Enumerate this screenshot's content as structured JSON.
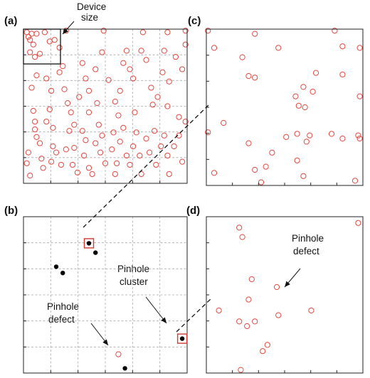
{
  "chart_data": [
    {
      "panel": "(a)",
      "type": "scatter",
      "marker": "open-circle",
      "color": "#e0483f",
      "grid": true,
      "xlim": [
        0,
        100
      ],
      "ylim": [
        0,
        100
      ],
      "annotations": [
        "Device",
        "size"
      ],
      "points": [
        [
          2,
          98
        ],
        [
          3,
          95
        ],
        [
          4,
          93
        ],
        [
          5,
          97
        ],
        [
          8,
          97
        ],
        [
          6,
          90
        ],
        [
          4,
          85
        ],
        [
          7,
          82
        ],
        [
          10,
          84
        ],
        [
          13,
          98
        ],
        [
          19,
          93
        ],
        [
          16,
          92
        ],
        [
          26,
          99
        ],
        [
          22,
          88
        ],
        [
          8,
          70
        ],
        [
          5,
          62
        ],
        [
          6,
          47
        ],
        [
          7,
          40
        ],
        [
          14,
          68
        ],
        [
          17,
          60
        ],
        [
          16,
          48
        ],
        [
          14,
          40
        ],
        [
          18,
          36
        ],
        [
          22,
          72
        ],
        [
          25,
          61
        ],
        [
          27,
          52
        ],
        [
          29,
          46
        ],
        [
          31,
          38
        ],
        [
          24,
          76
        ],
        [
          36,
          78
        ],
        [
          34,
          56
        ],
        [
          38,
          68
        ],
        [
          40,
          60
        ],
        [
          40,
          46
        ],
        [
          44,
          74
        ],
        [
          45,
          52
        ],
        [
          46,
          38
        ],
        [
          49,
          99
        ],
        [
          48,
          85
        ],
        [
          52,
          67
        ],
        [
          56,
          53
        ],
        [
          59,
          60
        ],
        [
          58,
          44
        ],
        [
          63,
          86
        ],
        [
          65,
          74
        ],
        [
          61,
          78
        ],
        [
          67,
          68
        ],
        [
          68,
          46
        ],
        [
          73,
          98
        ],
        [
          72,
          86
        ],
        [
          75,
          80
        ],
        [
          78,
          62
        ],
        [
          79,
          51
        ],
        [
          82,
          56
        ],
        [
          88,
          98
        ],
        [
          86,
          86
        ],
        [
          85,
          72
        ],
        [
          89,
          66
        ],
        [
          88,
          50
        ],
        [
          93,
          82
        ],
        [
          97,
          74
        ],
        [
          95,
          43
        ],
        [
          99,
          99
        ],
        [
          99,
          90
        ],
        [
          99,
          40
        ],
        [
          7,
          35
        ],
        [
          3,
          20
        ],
        [
          2,
          13
        ],
        [
          4,
          5
        ],
        [
          8,
          30
        ],
        [
          10,
          26
        ],
        [
          11,
          16
        ],
        [
          12,
          10
        ],
        [
          18,
          24
        ],
        [
          17,
          14
        ],
        [
          20,
          20
        ],
        [
          23,
          12
        ],
        [
          26,
          22
        ],
        [
          28,
          34
        ],
        [
          31,
          23
        ],
        [
          30,
          12
        ],
        [
          33,
          7
        ],
        [
          36,
          34
        ],
        [
          38,
          28
        ],
        [
          37,
          18
        ],
        [
          40,
          10
        ],
        [
          42,
          6
        ],
        [
          44,
          26
        ],
        [
          48,
          31
        ],
        [
          47,
          20
        ],
        [
          50,
          13
        ],
        [
          55,
          33
        ],
        [
          54,
          22
        ],
        [
          57,
          13
        ],
        [
          56,
          6
        ],
        [
          59,
          27
        ],
        [
          61,
          36
        ],
        [
          63,
          18
        ],
        [
          65,
          12
        ],
        [
          67,
          24
        ],
        [
          69,
          33
        ],
        [
          71,
          18
        ],
        [
          72,
          6
        ],
        [
          75,
          29
        ],
        [
          77,
          20
        ],
        [
          80,
          34
        ],
        [
          81,
          12
        ],
        [
          84,
          24
        ],
        [
          86,
          31
        ],
        [
          88,
          18
        ],
        [
          89,
          6
        ],
        [
          92,
          24
        ],
        [
          95,
          31
        ],
        [
          97,
          14
        ]
      ]
    },
    {
      "panel": "(b)",
      "type": "scatter",
      "marker": "filled-circle",
      "color": "#000000",
      "grid": true,
      "xlim": [
        0,
        100
      ],
      "ylim": [
        0,
        100
      ],
      "annotations": [
        "Pinhole",
        "defect",
        "Pinhole",
        "cluster"
      ],
      "points": [
        [
          40,
          83
        ],
        [
          44,
          77
        ],
        [
          20,
          68
        ],
        [
          24,
          64
        ],
        [
          97,
          22
        ],
        [
          62,
          3
        ]
      ],
      "highlighted": [
        0,
        4
      ],
      "defect_points": [
        [
          58,
          12
        ]
      ]
    },
    {
      "panel": "(c)",
      "type": "scatter",
      "marker": "open-circle",
      "color": "#e0483f",
      "grid": false,
      "xlim": [
        0,
        100
      ],
      "ylim": [
        0,
        100
      ],
      "points": [
        [
          1,
          99
        ],
        [
          31,
          97
        ],
        [
          82,
          99
        ],
        [
          5,
          88
        ],
        [
          23,
          82
        ],
        [
          46,
          88
        ],
        [
          87,
          89
        ],
        [
          98,
          88
        ],
        [
          27,
          70
        ],
        [
          31,
          69
        ],
        [
          70,
          72
        ],
        [
          57,
          57
        ],
        [
          62,
          63
        ],
        [
          59,
          51
        ],
        [
          63,
          50
        ],
        [
          68,
          60
        ],
        [
          87,
          71
        ],
        [
          98,
          57
        ],
        [
          11,
          40
        ],
        [
          1,
          34
        ],
        [
          27,
          27
        ],
        [
          51,
          31
        ],
        [
          58,
          33
        ],
        [
          66,
          32
        ],
        [
          80,
          33
        ],
        [
          87,
          30
        ],
        [
          98,
          30
        ],
        [
          97,
          32
        ],
        [
          42,
          21
        ],
        [
          5,
          8
        ],
        [
          31,
          10
        ],
        [
          38,
          12
        ],
        [
          58,
          16
        ],
        [
          64,
          28
        ],
        [
          35,
          2
        ],
        [
          62,
          6
        ],
        [
          95,
          3
        ]
      ]
    },
    {
      "panel": "(d)",
      "type": "scatter",
      "marker": "open-circle",
      "color": "#e0483f",
      "grid": false,
      "xlim": [
        0,
        100
      ],
      "ylim": [
        0,
        100
      ],
      "annotations": [
        "Pinhole",
        "defect"
      ],
      "points": [
        [
          21,
          93
        ],
        [
          23,
          87
        ],
        [
          97,
          96
        ],
        [
          45,
          55
        ],
        [
          29,
          60
        ],
        [
          27,
          47
        ],
        [
          8,
          40
        ],
        [
          46,
          37
        ],
        [
          67,
          40
        ],
        [
          31,
          33
        ],
        [
          21,
          33
        ],
        [
          26,
          30
        ],
        [
          39,
          18
        ],
        [
          36,
          14
        ],
        [
          22,
          2
        ]
      ]
    }
  ],
  "labels": {
    "a": "(a)",
    "b": "(b)",
    "c": "(c)",
    "d": "(d)",
    "device_line1": "Device",
    "device_line2": "size",
    "pinhole_defect_b_1": "Pinhole",
    "pinhole_defect_b_2": "defect",
    "pinhole_cluster_1": "Pinhole",
    "pinhole_cluster_2": "cluster",
    "pinhole_defect_d_1": "Pinhole",
    "pinhole_defect_d_2": "defect"
  }
}
